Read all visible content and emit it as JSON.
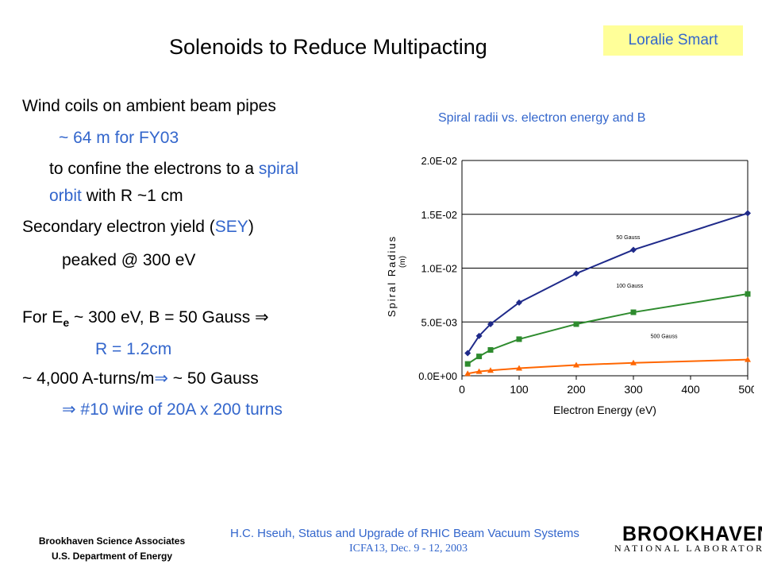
{
  "slide": {
    "title": "Solenoids to Reduce Multipacting",
    "author": "Loralie Smart"
  },
  "bullets": {
    "l1": "Wind coils on ambient beam pipes",
    "l2": "~ 64 m for FY03",
    "l3a": "to confine the electrons to a ",
    "l3b": "spiral",
    "l4a": "orbit",
    "l4b": " with R ~1 cm",
    "l5a": "Secondary electron yield (",
    "l5b": "SEY",
    "l5c": ")",
    "l6": "peaked @ 300 eV",
    "l7a": "For E",
    "l7sub": "e",
    "l7b": " ~ 300 eV, B = 50 Gauss  ⇒",
    "l8": "R  = 1.2cm",
    "l9a": "~ 4,000 A-turns/m",
    "l9b": "⇒",
    "l9c": " ~ 50 Gauss",
    "l10": "⇒  #10 wire of 20A x 200 turns"
  },
  "chart_caption": "Spiral radii vs. electron energy and B",
  "chart_data": {
    "type": "line",
    "xlabel": "Electron Energy (eV)",
    "ylabel": "Spiral Radius",
    "ylabel_unit": "(m)",
    "xlim": [
      0,
      500
    ],
    "ylim": [
      0,
      0.02
    ],
    "xticks": [
      "0",
      "100",
      "200",
      "300",
      "400",
      "500"
    ],
    "yticks": [
      "0.0E+00",
      "5.0E-03",
      "1.0E-02",
      "1.5E-02",
      "2.0E-02"
    ],
    "grid": "horizontal",
    "series": [
      {
        "name": "50 Gauss",
        "color": "#1f2a8a",
        "marker": "diamond",
        "x": [
          10,
          30,
          50,
          100,
          200,
          300,
          500
        ],
        "y": [
          0.0021,
          0.0037,
          0.0048,
          0.0068,
          0.0095,
          0.0117,
          0.0151
        ]
      },
      {
        "name": "100 Gauss",
        "color": "#2e8b2e",
        "marker": "square",
        "x": [
          10,
          30,
          50,
          100,
          200,
          300,
          500
        ],
        "y": [
          0.0011,
          0.0018,
          0.0024,
          0.0034,
          0.0048,
          0.0059,
          0.0076
        ]
      },
      {
        "name": "500 Gauss",
        "color": "#ff6600",
        "marker": "triangle",
        "x": [
          10,
          30,
          50,
          100,
          200,
          300,
          500
        ],
        "y": [
          0.0002,
          0.0004,
          0.0005,
          0.0007,
          0.001,
          0.0012,
          0.0015
        ]
      }
    ]
  },
  "footer": {
    "org1": "Brookhaven Science Associates",
    "org2": "U.S. Department of Energy",
    "center1": "H.C. Hseuh, Status and Upgrade of RHIC Beam Vacuum Systems",
    "center2": "ICFA13, Dec. 9 - 12, 2003",
    "logo_main": "BROOKHAVEN",
    "logo_sub": "NATIONAL LABORATORY"
  }
}
